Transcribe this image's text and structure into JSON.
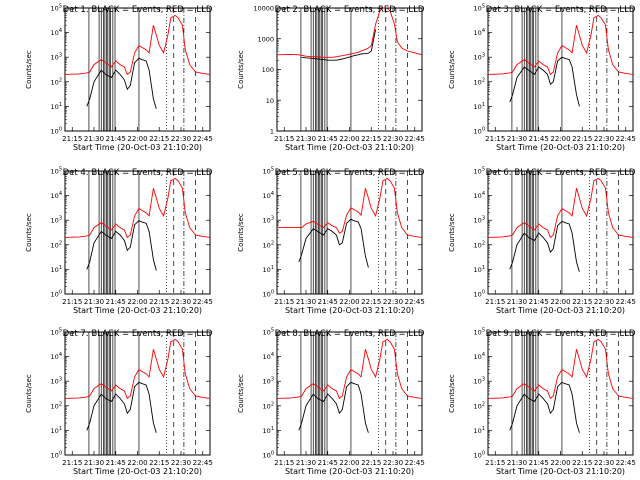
{
  "figure": {
    "xlabel": "Start Time (20-Oct-03 21:10:20)",
    "ylabel": "Counts/sec",
    "x_ticks": [
      "21:15",
      "21:30",
      "21:45",
      "22:00",
      "22:15",
      "22:30",
      "22:45"
    ],
    "x_tick_minutes": [
      15,
      30,
      45,
      60,
      75,
      90,
      105
    ],
    "x_range_minutes": [
      10,
      110
    ],
    "log_tick_labels": [
      "10^0",
      "10^1",
      "10^2",
      "10^3",
      "10^4",
      "10^5"
    ],
    "colors": {
      "events": "#000000",
      "lld": "#ff0000"
    },
    "markers": {
      "solid_minutes": [
        26.5,
        33.5,
        35,
        36.5,
        37.5,
        38.5,
        39.5,
        40.5,
        41.5,
        43,
        44.5,
        61
      ],
      "dashed_minutes": [
        85,
        100
      ],
      "dotted_minutes": [
        80
      ],
      "dashdot_minutes": [
        92
      ]
    }
  },
  "chart_data": [
    {
      "type": "line",
      "title": "Det 1: BLACK = Events, RED = LLD",
      "scale": "log",
      "ylim": [
        1,
        100000
      ],
      "y_tick_labels": [
        "10^0",
        "10^1",
        "10^2",
        "10^3",
        "10^4",
        "10^5"
      ],
      "x_minutes": [
        10,
        20,
        25,
        27,
        30,
        35,
        38,
        42,
        45,
        48,
        51,
        53,
        55,
        58,
        61,
        63,
        66,
        68,
        71,
        73,
        75,
        78,
        81,
        83,
        86,
        88,
        91,
        93,
        96,
        100,
        105,
        110
      ],
      "series": [
        {
          "name": "Events",
          "values": [
            null,
            null,
            10,
            20,
            100,
            300,
            200,
            150,
            300,
            200,
            120,
            50,
            70,
            600,
            900,
            800,
            700,
            300,
            20,
            8,
            null,
            null,
            null,
            null,
            null,
            null,
            null,
            null,
            null,
            null,
            null,
            null
          ]
        },
        {
          "name": "LLD",
          "values": [
            200,
            210,
            230,
            250,
            500,
            800,
            600,
            400,
            700,
            500,
            400,
            200,
            250,
            1500,
            3000,
            2500,
            2000,
            1500,
            20000,
            8000,
            3000,
            1500,
            8000,
            40000,
            50000,
            40000,
            20000,
            2000,
            500,
            250,
            220,
            200
          ]
        }
      ]
    },
    {
      "type": "line",
      "title": "Det 2: BLACK = Events, RED = LLD",
      "scale": "log",
      "ylim": [
        1,
        10000
      ],
      "y_tick_labels": [
        "1",
        "10",
        "100",
        "1000",
        "10000"
      ],
      "x_minutes": [
        10,
        20,
        25,
        27,
        30,
        35,
        38,
        42,
        45,
        48,
        51,
        53,
        55,
        58,
        61,
        63,
        66,
        68,
        71,
        73,
        75,
        78,
        81,
        83,
        86,
        88,
        91,
        93,
        96,
        100,
        105,
        110
      ],
      "series": [
        {
          "name": "Events",
          "values": [
            null,
            null,
            null,
            250,
            240,
            230,
            220,
            210,
            200,
            200,
            200,
            210,
            220,
            240,
            260,
            280,
            300,
            320,
            330,
            340,
            400,
            2000,
            null,
            null,
            null,
            null,
            null,
            null,
            null,
            null,
            null,
            null
          ]
        },
        {
          "name": "LLD",
          "values": [
            300,
            310,
            300,
            290,
            270,
            260,
            260,
            250,
            250,
            250,
            260,
            270,
            280,
            300,
            320,
            340,
            360,
            400,
            450,
            500,
            600,
            3000,
            8000,
            12000,
            10000,
            8000,
            3000,
            800,
            500,
            400,
            350,
            300
          ]
        }
      ]
    },
    {
      "type": "line",
      "title": "Det 3: BLACK = Events, RED = LLD",
      "scale": "log",
      "ylim": [
        1,
        100000
      ],
      "y_tick_labels": [
        "10^0",
        "10^1",
        "10^2",
        "10^3",
        "10^4",
        "10^5"
      ],
      "x_minutes": [
        10,
        20,
        25,
        27,
        30,
        35,
        38,
        42,
        45,
        48,
        51,
        53,
        55,
        58,
        61,
        63,
        66,
        68,
        71,
        73,
        75,
        78,
        81,
        83,
        86,
        88,
        91,
        93,
        96,
        100,
        105,
        110
      ],
      "series": [
        {
          "name": "Events",
          "values": [
            null,
            null,
            15,
            30,
            150,
            400,
            300,
            200,
            400,
            300,
            200,
            80,
            100,
            700,
            1000,
            900,
            800,
            400,
            30,
            10,
            null,
            null,
            null,
            null,
            null,
            null,
            null,
            null,
            null,
            null,
            null,
            null
          ]
        },
        {
          "name": "LLD",
          "values": [
            200,
            210,
            230,
            250,
            500,
            800,
            600,
            400,
            700,
            500,
            400,
            200,
            250,
            1500,
            3000,
            2500,
            2000,
            1500,
            20000,
            8000,
            3000,
            1500,
            8000,
            40000,
            50000,
            40000,
            20000,
            2000,
            500,
            250,
            220,
            200
          ]
        }
      ]
    },
    {
      "type": "line",
      "title": "Det 4: BLACK = Events, RED = LLD",
      "scale": "log",
      "ylim": [
        1,
        100000
      ],
      "y_tick_labels": [
        "10^0",
        "10^1",
        "10^2",
        "10^3",
        "10^4",
        "10^5"
      ],
      "x_minutes": [
        10,
        20,
        25,
        27,
        30,
        35,
        38,
        42,
        45,
        48,
        51,
        53,
        55,
        58,
        61,
        63,
        66,
        68,
        71,
        73,
        75,
        78,
        81,
        83,
        86,
        88,
        91,
        93,
        96,
        100,
        105,
        110
      ],
      "series": [
        {
          "name": "Events",
          "values": [
            null,
            null,
            10,
            20,
            120,
            350,
            250,
            180,
            350,
            250,
            150,
            60,
            80,
            650,
            950,
            850,
            750,
            350,
            25,
            9,
            null,
            null,
            null,
            null,
            null,
            null,
            null,
            null,
            null,
            null,
            null,
            null
          ]
        },
        {
          "name": "LLD",
          "values": [
            200,
            210,
            230,
            250,
            500,
            800,
            600,
            400,
            700,
            500,
            400,
            200,
            250,
            1500,
            3000,
            2500,
            2000,
            1500,
            20000,
            8000,
            3000,
            1500,
            8000,
            40000,
            50000,
            40000,
            20000,
            2000,
            500,
            250,
            220,
            200
          ]
        }
      ]
    },
    {
      "type": "line",
      "title": "Det 5: BLACK = Events, RED = LLD",
      "scale": "log",
      "ylim": [
        1,
        100000
      ],
      "y_tick_labels": [
        "10^0",
        "10^1",
        "10^2",
        "10^3",
        "10^4",
        "10^5"
      ],
      "x_minutes": [
        10,
        20,
        25,
        27,
        30,
        35,
        38,
        42,
        45,
        48,
        51,
        53,
        55,
        58,
        61,
        63,
        66,
        68,
        71,
        73,
        75,
        78,
        81,
        83,
        86,
        88,
        91,
        93,
        96,
        100,
        105,
        110
      ],
      "series": [
        {
          "name": "Events",
          "values": [
            null,
            null,
            20,
            40,
            180,
            450,
            350,
            250,
            450,
            350,
            250,
            100,
            120,
            750,
            1100,
            950,
            850,
            450,
            35,
            12,
            null,
            null,
            null,
            null,
            null,
            null,
            null,
            null,
            null,
            null,
            null,
            null
          ]
        },
        {
          "name": "LLD",
          "values": [
            500,
            500,
            500,
            500,
            700,
            900,
            700,
            500,
            800,
            600,
            500,
            300,
            350,
            1600,
            3200,
            2700,
            2200,
            1600,
            20000,
            8000,
            3000,
            1500,
            8000,
            40000,
            50000,
            40000,
            20000,
            2000,
            500,
            250,
            220,
            200
          ]
        }
      ]
    },
    {
      "type": "line",
      "title": "Det 6: BLACK = Events, RED = LLD",
      "scale": "log",
      "ylim": [
        1,
        100000
      ],
      "y_tick_labels": [
        "10^0",
        "10^1",
        "10^2",
        "10^3",
        "10^4",
        "10^5"
      ],
      "x_minutes": [
        10,
        20,
        25,
        27,
        30,
        35,
        38,
        42,
        45,
        48,
        51,
        53,
        55,
        58,
        61,
        63,
        66,
        68,
        71,
        73,
        75,
        78,
        81,
        83,
        86,
        88,
        91,
        93,
        96,
        100,
        105,
        110
      ],
      "series": [
        {
          "name": "Events",
          "values": [
            null,
            null,
            10,
            20,
            100,
            300,
            200,
            150,
            300,
            200,
            120,
            50,
            70,
            600,
            900,
            800,
            700,
            300,
            20,
            8,
            null,
            null,
            null,
            null,
            null,
            null,
            null,
            null,
            null,
            null,
            null,
            null
          ]
        },
        {
          "name": "LLD",
          "values": [
            200,
            210,
            230,
            250,
            500,
            800,
            600,
            400,
            700,
            500,
            400,
            200,
            250,
            1500,
            3000,
            2500,
            2000,
            1500,
            20000,
            8000,
            3000,
            1500,
            8000,
            40000,
            50000,
            40000,
            20000,
            2000,
            500,
            250,
            220,
            200
          ]
        }
      ]
    },
    {
      "type": "line",
      "title": "Det 7: BLACK = Events, RED = LLD",
      "scale": "log",
      "ylim": [
        1,
        100000
      ],
      "y_tick_labels": [
        "10^0",
        "10^1",
        "10^2",
        "10^3",
        "10^4",
        "10^5"
      ],
      "x_minutes": [
        10,
        20,
        25,
        27,
        30,
        35,
        38,
        42,
        45,
        48,
        51,
        53,
        55,
        58,
        61,
        63,
        66,
        68,
        71,
        73,
        75,
        78,
        81,
        83,
        86,
        88,
        91,
        93,
        96,
        100,
        105,
        110
      ],
      "series": [
        {
          "name": "Events",
          "values": [
            null,
            null,
            10,
            20,
            100,
            300,
            200,
            150,
            300,
            200,
            120,
            50,
            70,
            600,
            900,
            800,
            700,
            300,
            20,
            8,
            null,
            null,
            null,
            null,
            null,
            null,
            null,
            null,
            null,
            null,
            null,
            null
          ]
        },
        {
          "name": "LLD",
          "values": [
            200,
            210,
            230,
            250,
            500,
            800,
            600,
            400,
            700,
            500,
            400,
            200,
            250,
            1500,
            3000,
            2500,
            2000,
            1500,
            20000,
            8000,
            3000,
            1500,
            8000,
            40000,
            50000,
            40000,
            20000,
            2000,
            500,
            250,
            220,
            200
          ]
        }
      ]
    },
    {
      "type": "line",
      "title": "Det 8: BLACK = Events, RED = LLD",
      "scale": "log",
      "ylim": [
        1,
        100000
      ],
      "y_tick_labels": [
        "10^0",
        "10^1",
        "10^2",
        "10^3",
        "10^4",
        "10^5"
      ],
      "x_minutes": [
        10,
        20,
        25,
        27,
        30,
        35,
        38,
        42,
        45,
        48,
        51,
        53,
        55,
        58,
        61,
        63,
        66,
        68,
        71,
        73,
        75,
        78,
        81,
        83,
        86,
        88,
        91,
        93,
        96,
        100,
        105,
        110
      ],
      "series": [
        {
          "name": "Events",
          "values": [
            null,
            null,
            10,
            20,
            100,
            300,
            200,
            150,
            300,
            200,
            120,
            50,
            70,
            600,
            900,
            800,
            700,
            300,
            20,
            8,
            null,
            null,
            null,
            null,
            null,
            null,
            null,
            null,
            null,
            null,
            null,
            null
          ]
        },
        {
          "name": "LLD",
          "values": [
            200,
            210,
            230,
            250,
            500,
            800,
            600,
            400,
            700,
            500,
            400,
            200,
            250,
            1500,
            3000,
            2500,
            2000,
            1500,
            20000,
            8000,
            3000,
            1500,
            8000,
            40000,
            50000,
            40000,
            20000,
            2000,
            500,
            250,
            220,
            200
          ]
        }
      ]
    },
    {
      "type": "line",
      "title": "Det 9: BLACK = Events, RED = LLD",
      "scale": "log",
      "ylim": [
        1,
        100000
      ],
      "y_tick_labels": [
        "10^0",
        "10^1",
        "10^2",
        "10^3",
        "10^4",
        "10^5"
      ],
      "x_minutes": [
        10,
        20,
        25,
        27,
        30,
        35,
        38,
        42,
        45,
        48,
        51,
        53,
        55,
        58,
        61,
        63,
        66,
        68,
        71,
        73,
        75,
        78,
        81,
        83,
        86,
        88,
        91,
        93,
        96,
        100,
        105,
        110
      ],
      "series": [
        {
          "name": "Events",
          "values": [
            null,
            null,
            10,
            20,
            100,
            300,
            200,
            150,
            300,
            200,
            120,
            50,
            70,
            600,
            900,
            800,
            700,
            300,
            20,
            8,
            null,
            null,
            null,
            null,
            null,
            null,
            null,
            null,
            null,
            null,
            null,
            null
          ]
        },
        {
          "name": "LLD",
          "values": [
            200,
            210,
            230,
            250,
            500,
            800,
            600,
            400,
            700,
            500,
            400,
            200,
            250,
            1500,
            3000,
            2500,
            2000,
            1500,
            20000,
            8000,
            3000,
            1500,
            8000,
            40000,
            50000,
            40000,
            20000,
            2000,
            500,
            250,
            220,
            200
          ]
        }
      ]
    }
  ]
}
